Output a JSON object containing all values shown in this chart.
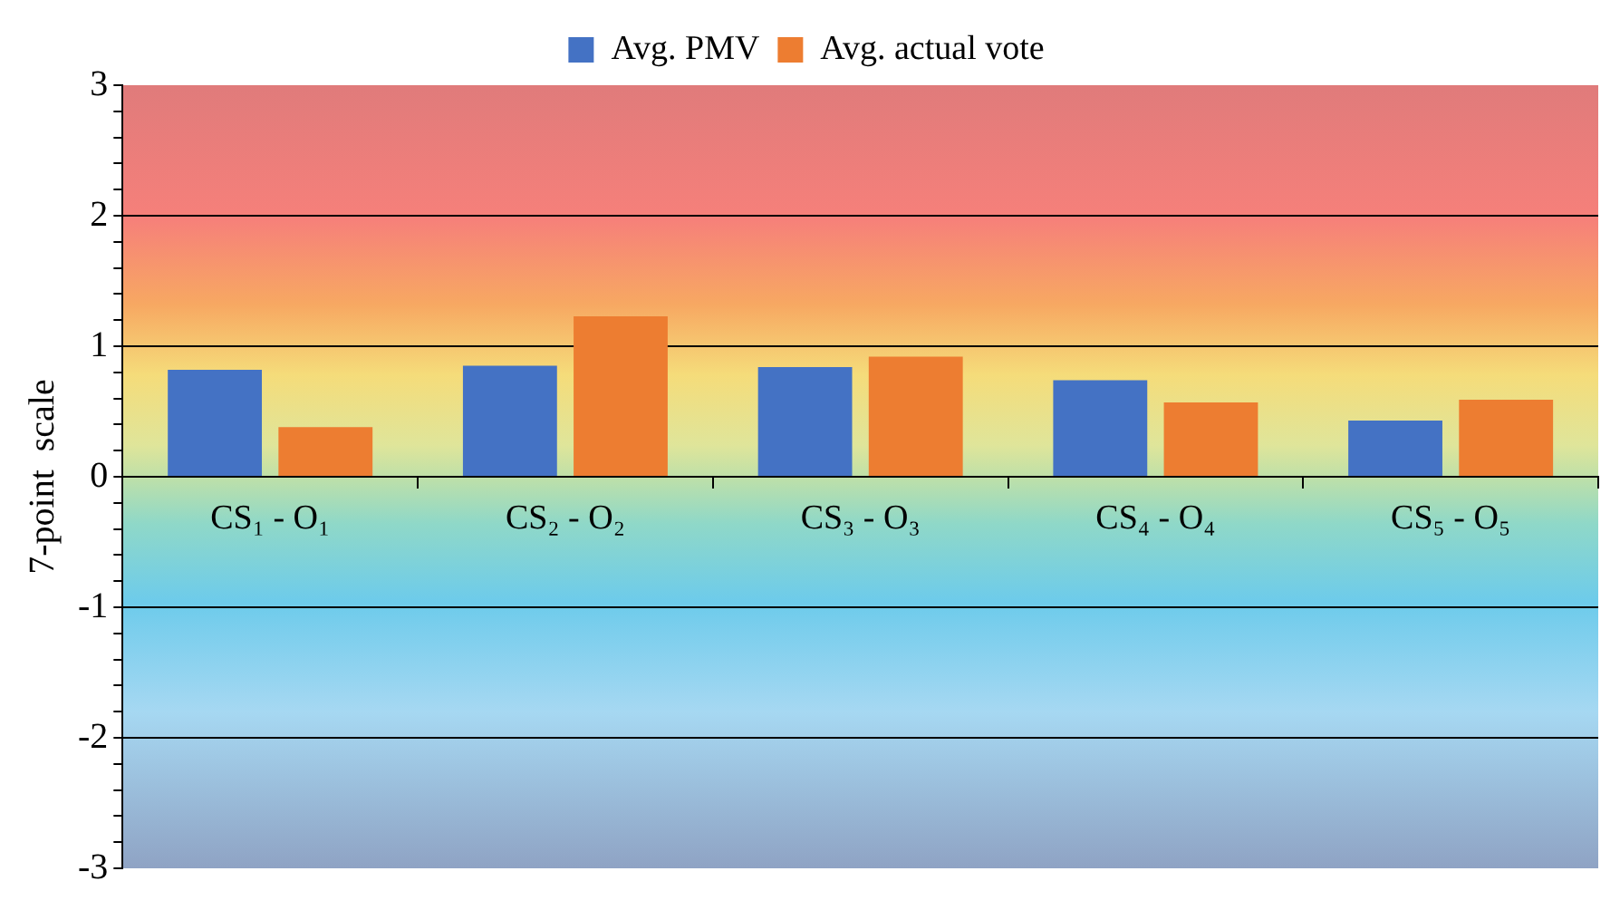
{
  "chart_data": {
    "type": "bar",
    "ylabel": "7-point  scale",
    "categories": [
      "CS₁ - O₁",
      "CS₂ - O₂",
      "CS₃ - O₃",
      "CS₄ - O₄",
      "CS₅ - O₅"
    ],
    "series": [
      {
        "name": "Avg. PMV",
        "color": "#4472c4",
        "values": [
          0.82,
          0.85,
          0.84,
          0.74,
          0.43
        ]
      },
      {
        "name": "Avg. actual vote",
        "color": "#ed7d31",
        "values": [
          0.38,
          1.23,
          0.92,
          0.57,
          0.59
        ]
      }
    ],
    "ylim": [
      -3,
      3
    ],
    "yticks": [
      -3,
      {
        "value": -2.8,
        "label": null
      },
      {
        "value": -2.6,
        "label": null
      },
      {
        "value": -2.4,
        "label": null
      },
      {
        "value": -2.2,
        "label": null
      },
      -2,
      {
        "value": -1.8,
        "label": null
      },
      {
        "value": -1.6,
        "label": null
      },
      {
        "value": -1.4,
        "label": null
      },
      {
        "value": -1.2,
        "label": null
      },
      -1,
      {
        "value": -0.8,
        "label": null
      },
      {
        "value": -0.6,
        "label": null
      },
      {
        "value": -0.4,
        "label": null
      },
      {
        "value": -0.2,
        "label": null
      },
      0,
      {
        "value": 0.2,
        "label": null
      },
      {
        "value": 0.4,
        "label": null
      },
      {
        "value": 0.6,
        "label": null
      },
      {
        "value": 0.8,
        "label": null
      },
      1,
      {
        "value": 1.2,
        "label": null
      },
      {
        "value": 1.4,
        "label": null
      },
      {
        "value": 1.6,
        "label": null
      },
      {
        "value": 1.8,
        "label": null
      },
      2,
      {
        "value": 2.2,
        "label": null
      },
      {
        "value": 2.4,
        "label": null
      },
      {
        "value": 2.6,
        "label": null
      },
      {
        "value": 2.8,
        "label": null
      },
      3
    ],
    "grid": "y",
    "legend": "top"
  }
}
